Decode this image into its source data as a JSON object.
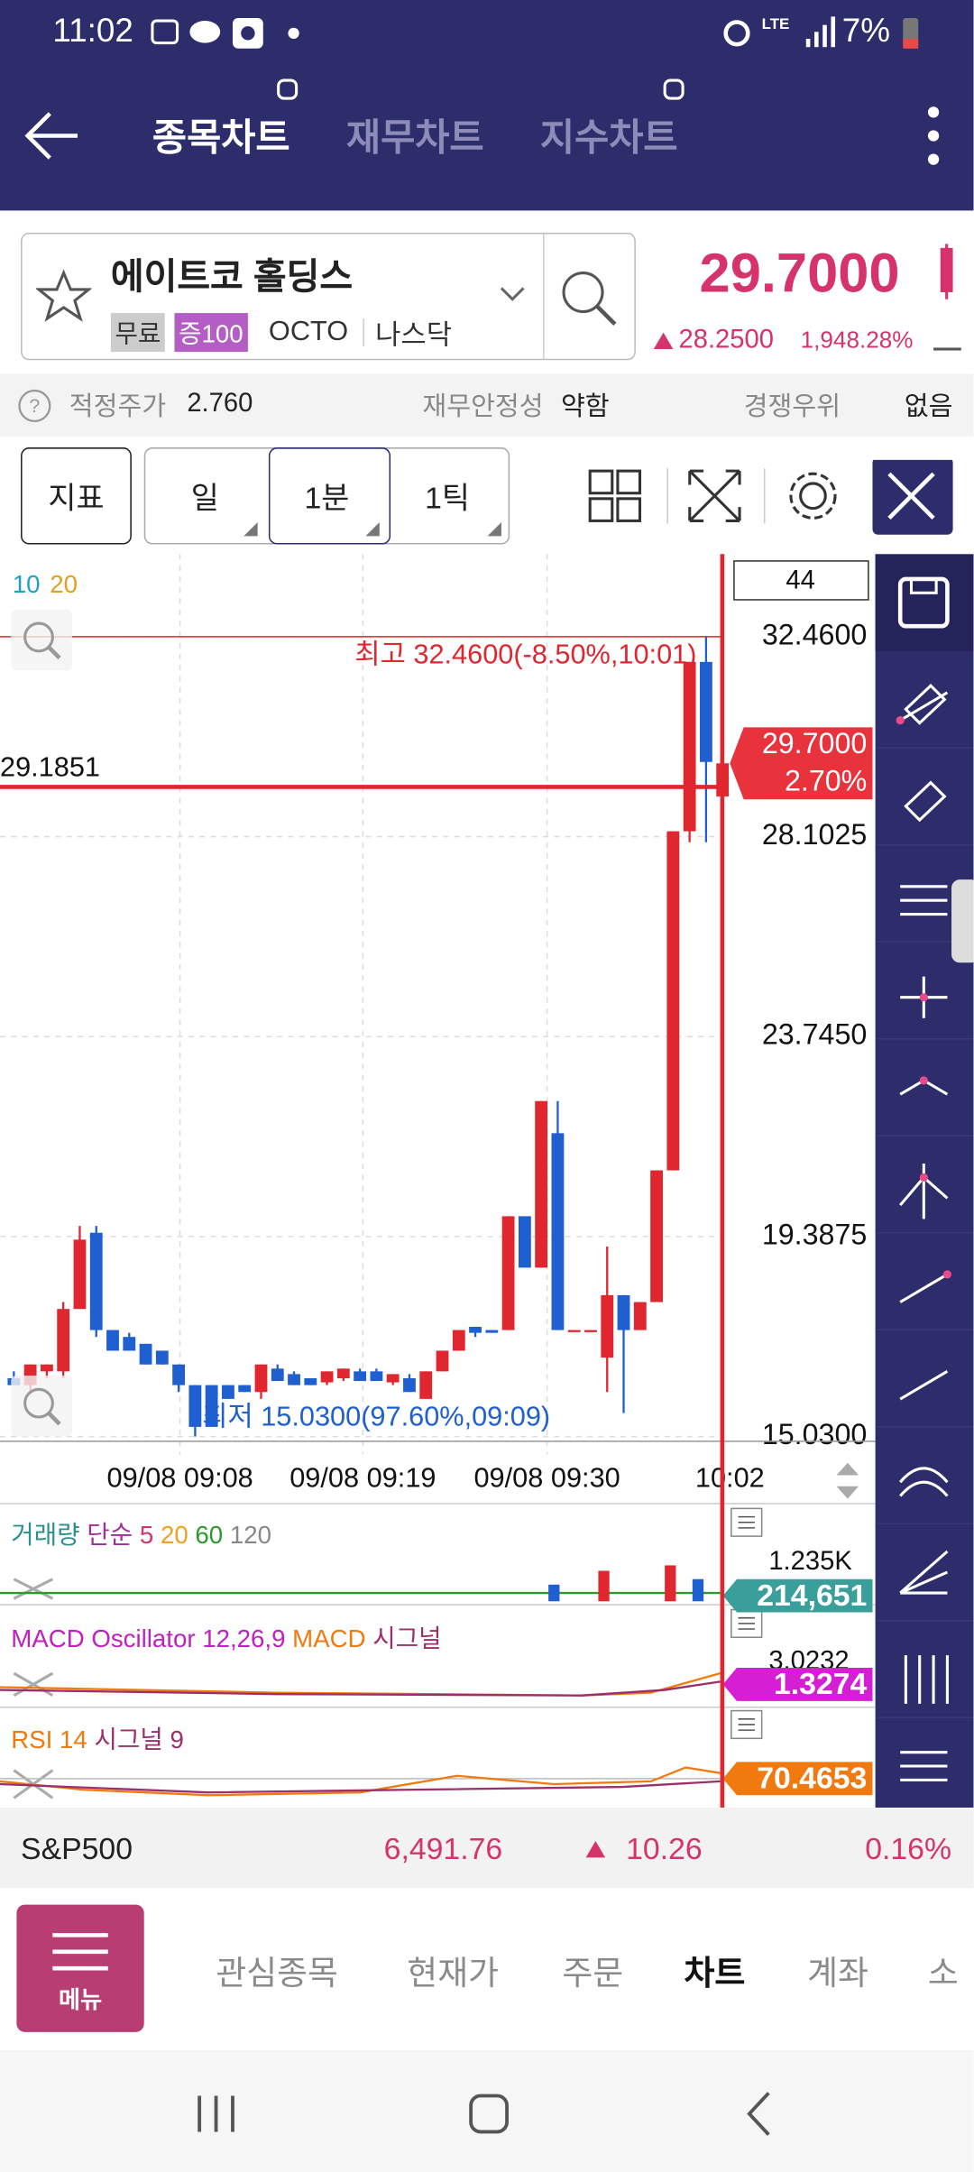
{
  "status_bar": {
    "time": "11:02",
    "network": "LTE",
    "battery": "7%"
  },
  "tabs": [
    "종목차트",
    "재무차트",
    "지수차트"
  ],
  "active_tab": 0,
  "stock": {
    "name": "에이트코 홀딩스",
    "badges": [
      "무료",
      "증100"
    ],
    "ticker": "OCTO",
    "market": "나스닥",
    "price": "29.7000",
    "change": "28.2500",
    "change_pct": "1,948.28%"
  },
  "info_row": [
    {
      "label": "적정주가",
      "value": "2.760"
    },
    {
      "label": "재무안정성",
      "value": "약함"
    },
    {
      "label": "경쟁우위",
      "value": "없음"
    }
  ],
  "toolbar": {
    "indicator": "지표",
    "periods": [
      "일",
      "1분",
      "1틱"
    ],
    "selected_period": 1
  },
  "price_chart": {
    "ma_labels": [
      "10",
      "20"
    ],
    "count": "44",
    "ylim": [
      14.79,
      34.2
    ],
    "yticks": [
      {
        "value": 32.46,
        "label": "32.4600"
      },
      {
        "value": 28.1025,
        "label": "28.1025"
      },
      {
        "value": 23.745,
        "label": "23.7450"
      },
      {
        "value": 19.3875,
        "label": "19.3875"
      },
      {
        "value": 15.03,
        "label": "15.0300"
      }
    ],
    "xticks": [
      "09/08 09:08",
      "09/08 09:19",
      "09/08 09:30",
      "10:02"
    ],
    "high_label": "최고 32.4600(-8.50%,10:01)",
    "low_label": "최저 15.0300(97.60%,09:09)",
    "crosshair": {
      "value": 29.1851,
      "label": "29.1851"
    },
    "current": {
      "value": 29.7,
      "price": "29.7000",
      "pct": "2.70%"
    },
    "candles": [
      {
        "o": 16.3,
        "h": 16.45,
        "l": 16.15,
        "c": 16.15
      },
      {
        "o": 16.15,
        "h": 16.6,
        "l": 16.0,
        "c": 16.6
      },
      {
        "o": 16.45,
        "h": 16.6,
        "l": 16.3,
        "c": 16.6
      },
      {
        "o": 16.45,
        "h": 17.96,
        "l": 16.3,
        "c": 17.81
      },
      {
        "o": 17.81,
        "h": 19.62,
        "l": 17.81,
        "c": 19.32
      },
      {
        "o": 19.47,
        "h": 19.62,
        "l": 17.2,
        "c": 17.35
      },
      {
        "o": 17.35,
        "h": 17.35,
        "l": 16.9,
        "c": 16.9
      },
      {
        "o": 17.2,
        "h": 17.29,
        "l": 16.9,
        "c": 16.9
      },
      {
        "o": 17.05,
        "h": 17.05,
        "l": 16.6,
        "c": 16.6
      },
      {
        "o": 16.9,
        "h": 16.9,
        "l": 16.6,
        "c": 16.6
      },
      {
        "o": 16.6,
        "h": 16.6,
        "l": 16.0,
        "c": 16.15
      },
      {
        "o": 16.15,
        "h": 16.15,
        "l": 15.03,
        "c": 15.24
      },
      {
        "o": 16.15,
        "h": 16.15,
        "l": 15.24,
        "c": 15.24
      },
      {
        "o": 16.15,
        "h": 16.15,
        "l": 15.85,
        "c": 15.85
      },
      {
        "o": 16.15,
        "h": 16.15,
        "l": 16.0,
        "c": 16.0
      },
      {
        "o": 16.0,
        "h": 16.6,
        "l": 15.85,
        "c": 16.6
      },
      {
        "o": 16.51,
        "h": 16.6,
        "l": 16.24,
        "c": 16.24
      },
      {
        "o": 16.39,
        "h": 16.45,
        "l": 16.15,
        "c": 16.15
      },
      {
        "o": 16.3,
        "h": 16.3,
        "l": 16.15,
        "c": 16.15
      },
      {
        "o": 16.21,
        "h": 16.45,
        "l": 16.15,
        "c": 16.45
      },
      {
        "o": 16.3,
        "h": 16.51,
        "l": 16.24,
        "c": 16.51
      },
      {
        "o": 16.45,
        "h": 16.51,
        "l": 16.24,
        "c": 16.24
      },
      {
        "o": 16.45,
        "h": 16.51,
        "l": 16.24,
        "c": 16.24
      },
      {
        "o": 16.21,
        "h": 16.39,
        "l": 16.15,
        "c": 16.39
      },
      {
        "o": 16.3,
        "h": 16.39,
        "l": 16.0,
        "c": 16.0
      },
      {
        "o": 15.85,
        "h": 16.45,
        "l": 15.85,
        "c": 16.45
      },
      {
        "o": 16.45,
        "h": 16.9,
        "l": 16.45,
        "c": 16.9
      },
      {
        "o": 16.9,
        "h": 17.35,
        "l": 16.9,
        "c": 17.35
      },
      {
        "o": 17.42,
        "h": 17.42,
        "l": 17.2,
        "c": 17.29
      },
      {
        "o": 17.35,
        "h": 17.35,
        "l": 17.29,
        "c": 17.29
      },
      {
        "o": 17.35,
        "h": 19.83,
        "l": 17.35,
        "c": 19.83
      },
      {
        "o": 19.83,
        "h": 19.83,
        "l": 18.71,
        "c": 18.71
      },
      {
        "o": 18.71,
        "h": 22.34,
        "l": 18.71,
        "c": 22.34
      },
      {
        "o": 21.64,
        "h": 22.34,
        "l": 17.35,
        "c": 17.35
      },
      {
        "o": 17.35,
        "h": 17.35,
        "l": 17.35,
        "c": 17.35
      },
      {
        "o": 17.35,
        "h": 17.35,
        "l": 17.35,
        "c": 17.35
      },
      {
        "o": 16.75,
        "h": 19.17,
        "l": 16.0,
        "c": 18.11
      },
      {
        "o": 18.11,
        "h": 18.11,
        "l": 15.54,
        "c": 17.35
      },
      {
        "o": 17.35,
        "h": 17.96,
        "l": 17.35,
        "c": 17.96
      },
      {
        "o": 17.96,
        "h": 20.83,
        "l": 17.96,
        "c": 20.83
      },
      {
        "o": 20.83,
        "h": 28.22,
        "l": 20.83,
        "c": 28.22
      },
      {
        "o": 28.22,
        "h": 31.91,
        "l": 27.98,
        "c": 31.91
      },
      {
        "o": 31.91,
        "h": 32.46,
        "l": 27.98,
        "c": 29.73
      },
      {
        "o": 28.98,
        "h": 29.73,
        "l": 28.98,
        "c": 29.7
      }
    ]
  },
  "volume_panel": {
    "title": "거래량",
    "ma": "단순",
    "periods": [
      "5",
      "20",
      "60",
      "120"
    ],
    "axis": "1.235K",
    "value": "214,651"
  },
  "macd_panel": {
    "title": "MACD Oscillator 12,26,9",
    "macd": "MACD",
    "signal": "시그널",
    "axis": "3.0232",
    "value": "1.3274"
  },
  "rsi_panel": {
    "title": "RSI 14",
    "signal": "시그널 9",
    "value": "70.4653"
  },
  "index_bar": {
    "name": "S&P500",
    "value": "6,491.76",
    "change": "10.26",
    "pct": "0.16%"
  },
  "bottom_nav": {
    "menu": "메뉴",
    "items": [
      "관심종목",
      "현재가",
      "주문",
      "차트",
      "계좌",
      "소"
    ],
    "active": 3
  }
}
